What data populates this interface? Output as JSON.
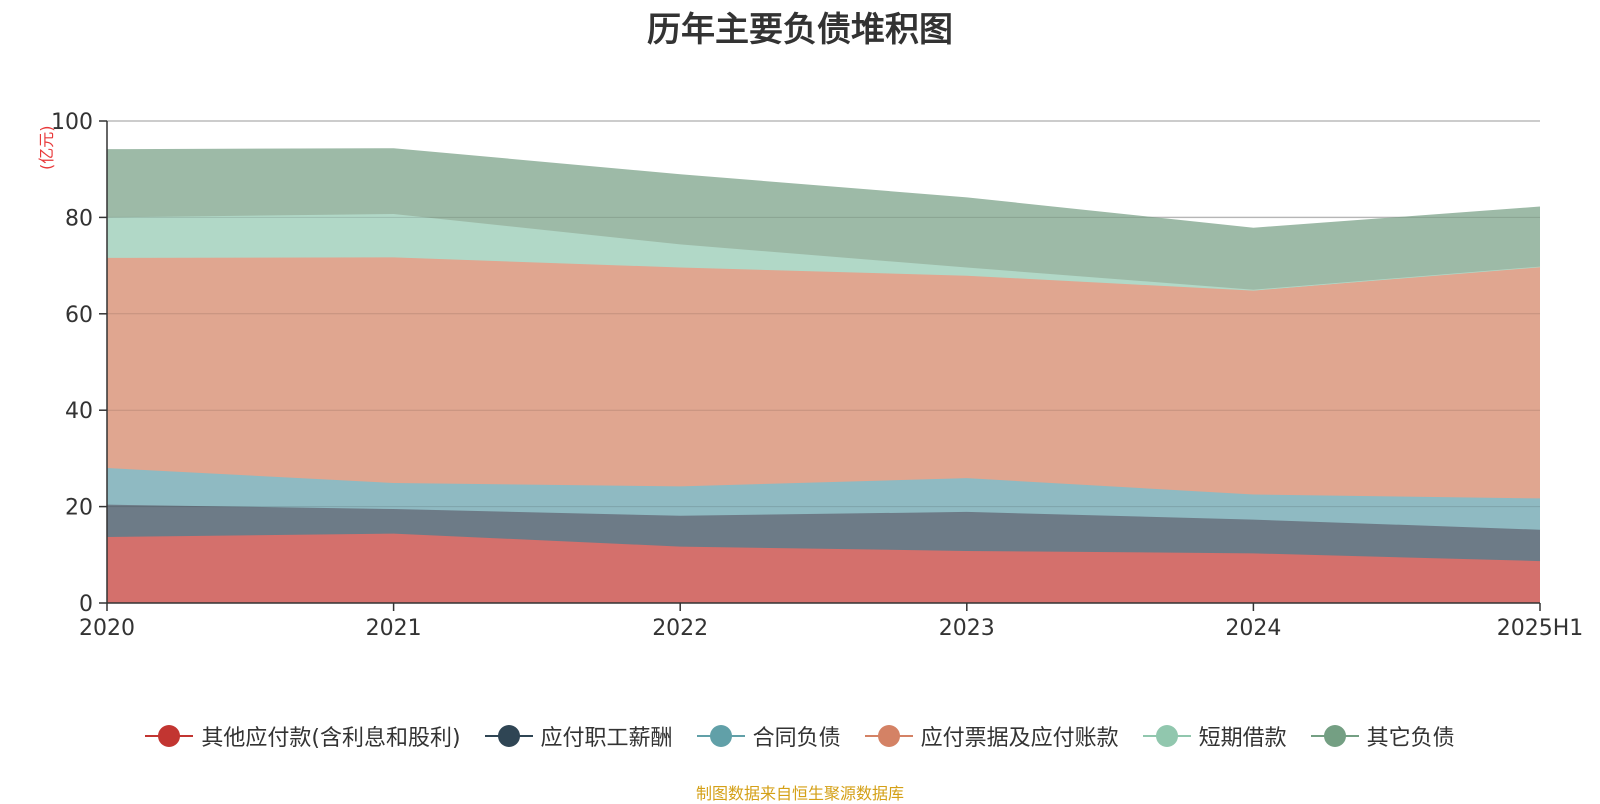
{
  "chart_data": {
    "type": "area",
    "stacked": true,
    "title": "历年主要负债堆积图",
    "unit_label": "(亿元)",
    "categories": [
      "2020",
      "2021",
      "2022",
      "2023",
      "2024",
      "2025H1"
    ],
    "ylim": [
      0,
      100
    ],
    "yticks": [
      0,
      20,
      40,
      60,
      80,
      100
    ],
    "grid": true,
    "legend_position": "bottom",
    "series": [
      {
        "name": "其他应付款(含利息和股利)",
        "color": "#d4706c",
        "values": [
          13.7,
          14.4,
          11.7,
          10.8,
          10.3,
          8.7
        ]
      },
      {
        "name": "应付职工薪酬",
        "color": "#6d7b87",
        "values": [
          6.7,
          5.1,
          6.4,
          8.1,
          7.0,
          6.5
        ]
      },
      {
        "name": "合同负债",
        "color": "#8fbac2",
        "values": [
          7.6,
          5.4,
          6.1,
          7.0,
          5.2,
          6.5
        ]
      },
      {
        "name": "应付票据及应付账款",
        "color": "#e0a690",
        "values": [
          43.6,
          46.8,
          45.4,
          42.0,
          42.3,
          48.1
        ]
      },
      {
        "name": "短期借款",
        "color": "#b1d8c7",
        "values": [
          8.4,
          9.0,
          4.8,
          1.7,
          0.2,
          0.0
        ]
      },
      {
        "name": "其它负债",
        "color": "#9dbaa7",
        "values": [
          14.0,
          13.5,
          14.4,
          14.4,
          12.7,
          12.3
        ]
      }
    ],
    "legend_marker_colors": [
      "#c23531",
      "#2f4554",
      "#61a0a8",
      "#d48265",
      "#91c7ae",
      "#749f83"
    ]
  },
  "source_note": "制图数据来自恒生聚源数据库"
}
